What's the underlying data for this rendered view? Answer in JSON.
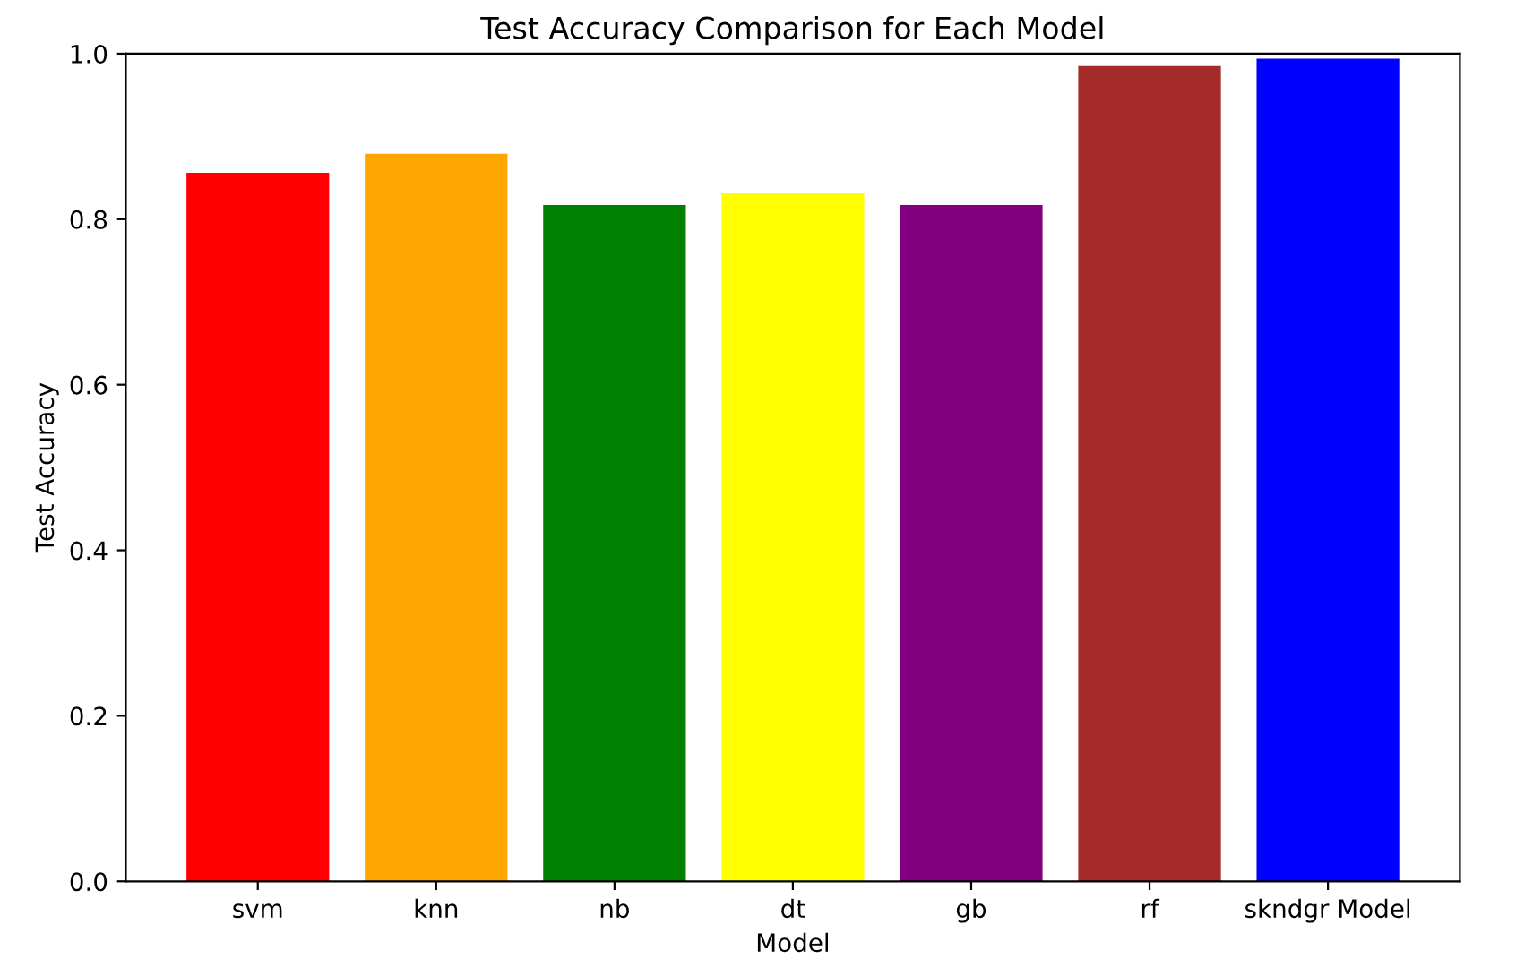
{
  "chart_data": {
    "type": "bar",
    "title": "Test Accuracy Comparison for Each Model",
    "xlabel": "Model",
    "ylabel": "Test Accuracy",
    "categories": [
      "svm",
      "knn",
      "nb",
      "dt",
      "gb",
      "rf",
      "skndgr Model"
    ],
    "values": [
      0.856,
      0.879,
      0.817,
      0.832,
      0.817,
      0.985,
      0.994
    ],
    "colors": [
      "#ff0000",
      "#ffa500",
      "#008000",
      "#ffff00",
      "#800080",
      "#a52a2a",
      "#0000ff"
    ],
    "ylim": [
      0,
      1
    ],
    "yticks": [
      {
        "value": 0,
        "label": "0.0"
      },
      0.2,
      0.4,
      0.6,
      0.8,
      {
        "value": 1,
        "label": "1.0"
      }
    ],
    "grid": false,
    "legend": false
  }
}
